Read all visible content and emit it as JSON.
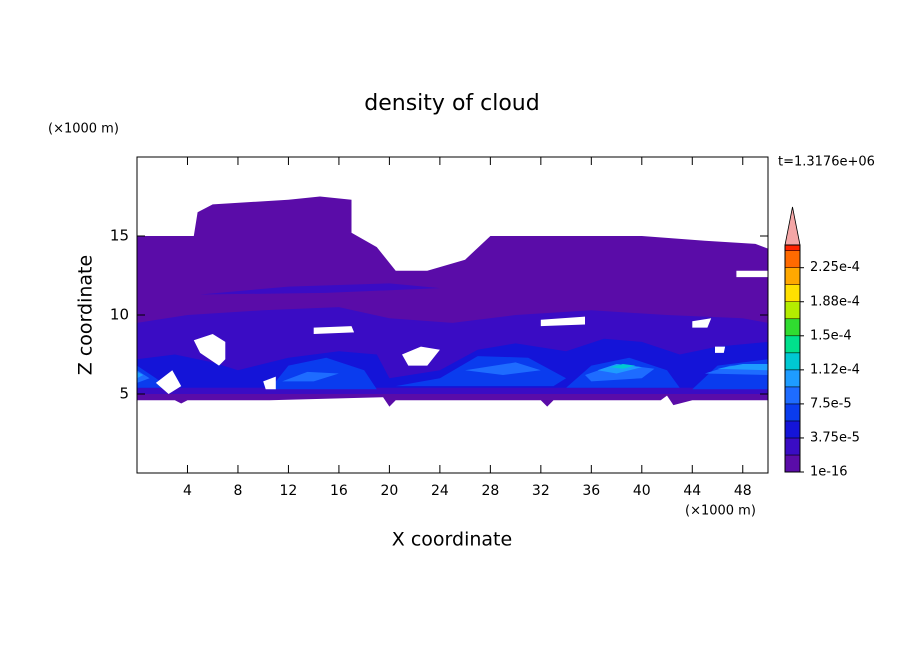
{
  "chart_data": {
    "type": "contour",
    "title": "density of cloud",
    "xlabel": "X coordinate",
    "ylabel": "Z coordinate",
    "x_unit": "(×1000 m)",
    "y_unit": "(×1000 m)",
    "annotation": "t=1.3176e+06",
    "xlim": [
      0,
      50
    ],
    "ylim": [
      0,
      20
    ],
    "xticks": [
      4,
      8,
      12,
      16,
      20,
      24,
      28,
      32,
      36,
      40,
      44,
      48
    ],
    "yticks": [
      5,
      10,
      15
    ],
    "colorbar": {
      "lim": [
        1e-16,
        0.00025
      ],
      "levels": [
        1e-16,
        1.875e-05,
        3.75e-05,
        5.625e-05,
        7.5e-05,
        9.375e-05,
        0.0001125,
        0.00013125,
        0.00015,
        0.00016875,
        0.0001875,
        0.00020625,
        0.000225,
        0.00024375
      ],
      "colors": [
        "#5a0ca8",
        "#3a0cc4",
        "#1414d8",
        "#0a3cee",
        "#1e6cff",
        "#1e9cff",
        "#00c8d2",
        "#00e08c",
        "#30dc30",
        "#b4ec00",
        "#ffe000",
        "#ffa800",
        "#ff6a00",
        "#ff2400"
      ],
      "extend_color": "#f4a6a6",
      "ticks": [
        1e-16,
        {
          "value": 3.75e-05,
          "label": "3.75e-5"
        },
        {
          "value": 7.5e-05,
          "label": "7.5e-5"
        },
        {
          "value": 0.0001125,
          "label": "1.12e-4"
        },
        {
          "value": 0.00015,
          "label": "1.5e-4"
        },
        {
          "value": 0.0001875,
          "label": "1.88e-4"
        },
        {
          "value": 0.000225,
          "label": "2.25e-4"
        }
      ]
    },
    "regions": [
      {
        "value": 1e-16,
        "rings": [
          [
            [
              0,
              15
            ],
            [
              4.5,
              15
            ],
            [
              4.8,
              16.5
            ],
            [
              6,
              17
            ],
            [
              12,
              17.3
            ],
            [
              14.5,
              17.5
            ],
            [
              17,
              17.3
            ],
            [
              17,
              15.2
            ],
            [
              19,
              14.3
            ],
            [
              20.5,
              12.8
            ],
            [
              23,
              12.8
            ],
            [
              26,
              13.5
            ],
            [
              28,
              15
            ],
            [
              36,
              15
            ],
            [
              40,
              15
            ],
            [
              45,
              14.7
            ],
            [
              49,
              14.5
            ],
            [
              50,
              14.2
            ],
            [
              50,
              4.6
            ],
            [
              44,
              4.6
            ],
            [
              42.5,
              4.3
            ],
            [
              42,
              4.9
            ],
            [
              41.5,
              4.6
            ],
            [
              33,
              4.6
            ],
            [
              32.5,
              4.2
            ],
            [
              32,
              4.6
            ],
            [
              20.5,
              4.6
            ],
            [
              20,
              4.2
            ],
            [
              19.5,
              4.8
            ],
            [
              10.5,
              4.6
            ],
            [
              4,
              4.6
            ],
            [
              3.5,
              4.4
            ],
            [
              3,
              4.6
            ],
            [
              0,
              4.6
            ]
          ]
        ]
      },
      {
        "value": 1.875e-05,
        "rings": [
          [
            [
              0,
              9.5
            ],
            [
              4,
              10
            ],
            [
              10,
              10.3
            ],
            [
              16,
              10.5
            ],
            [
              20,
              9.8
            ],
            [
              25,
              9.5
            ],
            [
              30,
              10
            ],
            [
              36,
              10.3
            ],
            [
              42,
              10
            ],
            [
              48,
              9.8
            ],
            [
              50,
              9.5
            ],
            [
              50,
              5
            ],
            [
              0,
              5
            ]
          ],
          [
            [
              5,
              11.3
            ],
            [
              12,
              11.8
            ],
            [
              20,
              12
            ],
            [
              24,
              11.7
            ],
            [
              15,
              11.4
            ]
          ]
        ]
      },
      {
        "value": 3.75e-05,
        "rings": [
          [
            [
              0,
              7.2
            ],
            [
              3,
              7.5
            ],
            [
              6,
              7
            ],
            [
              8,
              6.5
            ],
            [
              12,
              7.3
            ],
            [
              16,
              7.7
            ],
            [
              19,
              7.5
            ],
            [
              20,
              6
            ],
            [
              24,
              6.5
            ],
            [
              27,
              7.8
            ],
            [
              30,
              8.2
            ],
            [
              34,
              7.7
            ],
            [
              37,
              8.5
            ],
            [
              40,
              8.3
            ],
            [
              43,
              7.5
            ],
            [
              46,
              8
            ],
            [
              50,
              8.3
            ],
            [
              50,
              5.4
            ],
            [
              0,
              5.4
            ]
          ]
        ]
      },
      {
        "value": 5.625e-05,
        "rings": [
          [
            [
              0,
              6.8
            ],
            [
              1.5,
              6
            ],
            [
              2.5,
              5.4
            ],
            [
              0,
              5.4
            ]
          ],
          [
            [
              10.5,
              5.3
            ],
            [
              12,
              6.8
            ],
            [
              15,
              7.3
            ],
            [
              18,
              6.5
            ],
            [
              19,
              5.3
            ]
          ],
          [
            [
              20.5,
              5.5
            ],
            [
              24,
              6
            ],
            [
              27,
              7.4
            ],
            [
              31,
              7.3
            ],
            [
              34,
              6
            ],
            [
              33,
              5.5
            ]
          ],
          [
            [
              34,
              5.4
            ],
            [
              36,
              6.8
            ],
            [
              39,
              7.3
            ],
            [
              42,
              6.5
            ],
            [
              43,
              5.4
            ]
          ],
          [
            [
              44,
              5.3
            ],
            [
              46,
              6.8
            ],
            [
              50,
              7.2
            ],
            [
              50,
              5.3
            ]
          ]
        ]
      },
      {
        "value": 7.5e-05,
        "rings": [
          [
            [
              0,
              6.5
            ],
            [
              1,
              6
            ],
            [
              0,
              5.7
            ]
          ],
          [
            [
              11.5,
              5.8
            ],
            [
              13.5,
              6.4
            ],
            [
              16,
              6.3
            ],
            [
              14,
              5.8
            ]
          ],
          [
            [
              26,
              6.5
            ],
            [
              30,
              7
            ],
            [
              32,
              6.5
            ],
            [
              29,
              6.2
            ]
          ],
          [
            [
              35.5,
              6.2
            ],
            [
              38,
              6.9
            ],
            [
              41,
              6.6
            ],
            [
              40,
              6
            ],
            [
              36,
              5.8
            ]
          ],
          [
            [
              45,
              6.3
            ],
            [
              47,
              6.8
            ],
            [
              50,
              6.9
            ],
            [
              50,
              6.2
            ]
          ]
        ]
      },
      {
        "value": 9.375e-05,
        "rings": [
          [
            [
              36.5,
              6.5
            ],
            [
              38,
              6.9
            ],
            [
              40,
              6.7
            ],
            [
              38,
              6.3
            ]
          ],
          [
            [
              46,
              6.6
            ],
            [
              48,
              6.9
            ],
            [
              50,
              6.9
            ],
            [
              50,
              6.5
            ]
          ],
          [
            [
              0,
              6.4
            ],
            [
              0.5,
              6.2
            ],
            [
              0,
              6
            ]
          ]
        ]
      },
      {
        "value": 0.0001125,
        "rings": [
          [
            [
              37.5,
              6.7
            ],
            [
              38.5,
              6.9
            ],
            [
              39.5,
              6.8
            ],
            [
              38.5,
              6.6
            ]
          ]
        ]
      },
      {
        "value": null,
        "rings": [
          [
            [
              47.5,
              12.8
            ],
            [
              50,
              12.8
            ],
            [
              50,
              12.4
            ],
            [
              47.5,
              12.4
            ]
          ],
          [
            [
              4.5,
              8.4
            ],
            [
              6,
              8.8
            ],
            [
              7,
              8.3
            ],
            [
              7,
              7.2
            ],
            [
              6.5,
              6.8
            ],
            [
              5,
              7.6
            ]
          ],
          [
            [
              1.5,
              5.7
            ],
            [
              2.8,
              6.5
            ],
            [
              3.5,
              5.5
            ],
            [
              2.5,
              5
            ]
          ],
          [
            [
              14,
              9.2
            ],
            [
              17,
              9.3
            ],
            [
              17.2,
              8.9
            ],
            [
              14,
              8.8
            ]
          ],
          [
            [
              32,
              9.7
            ],
            [
              35.5,
              9.9
            ],
            [
              35.5,
              9.4
            ],
            [
              32,
              9.3
            ]
          ],
          [
            [
              21,
              7.5
            ],
            [
              22.5,
              8
            ],
            [
              24,
              7.8
            ],
            [
              23,
              6.8
            ],
            [
              21.5,
              6.8
            ]
          ],
          [
            [
              10,
              5.8
            ],
            [
              11,
              6.1
            ],
            [
              11,
              5.3
            ],
            [
              10.2,
              5.3
            ]
          ],
          [
            [
              45.8,
              8
            ],
            [
              46.6,
              8
            ],
            [
              46.5,
              7.6
            ],
            [
              45.8,
              7.6
            ]
          ],
          [
            [
              44,
              9.6
            ],
            [
              45.5,
              9.8
            ],
            [
              45.2,
              9.2
            ],
            [
              44,
              9.2
            ]
          ]
        ]
      }
    ]
  }
}
